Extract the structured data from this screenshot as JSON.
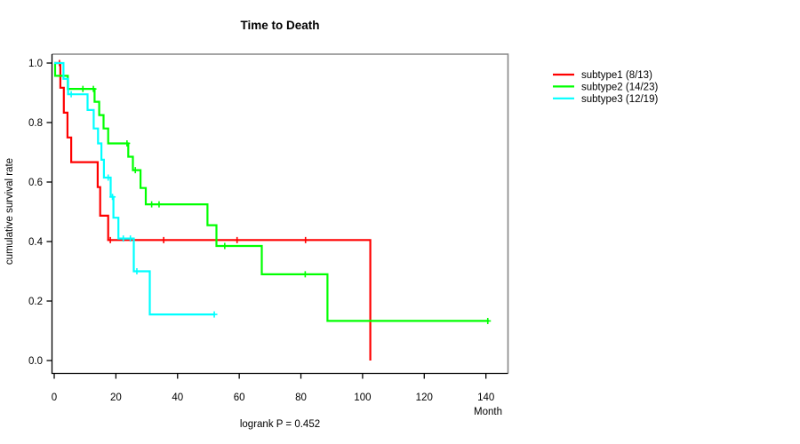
{
  "chart_data": {
    "type": "line",
    "variant": "kaplan-meier-step",
    "title": "Time to Death",
    "xlabel": "Month",
    "ylabel": "cumulative survival rate",
    "footnote": "logrank P = 0.452",
    "xticks": [
      0,
      20,
      40,
      60,
      80,
      100,
      120,
      140
    ],
    "ytick_labels": [
      "0.0",
      "0.2",
      "0.4",
      "0.6",
      "0.8",
      "1.0"
    ],
    "ytick_values": [
      0.0,
      0.2,
      0.4,
      0.6,
      0.8,
      1.0
    ],
    "xlim": [
      0,
      147
    ],
    "ylim": [
      0.0,
      1.0
    ],
    "grid": false,
    "legend_position": "right-outside",
    "axis_color": "#000000",
    "box_color": "#878787",
    "series": [
      {
        "name": "subtype1 (8/13)",
        "color": "#ff0000",
        "steps": [
          [
            0,
            1.0
          ],
          [
            2,
            0.917
          ],
          [
            3.1,
            0.833
          ],
          [
            4.3,
            0.75
          ],
          [
            5.5,
            0.667
          ],
          [
            14.1,
            0.583
          ],
          [
            14.9,
            0.487
          ],
          [
            17.5,
            0.405
          ],
          [
            102.5,
            0.0
          ]
        ],
        "end": 102.5,
        "censors": [
          [
            1.7,
            1.0
          ],
          [
            18.2,
            0.405
          ],
          [
            35.5,
            0.405
          ],
          [
            59.3,
            0.405
          ],
          [
            81.5,
            0.405
          ]
        ]
      },
      {
        "name": "subtype2 (14/23)",
        "color": "#00ff00",
        "steps": [
          [
            0,
            1.0
          ],
          [
            0.3,
            0.957
          ],
          [
            4.4,
            0.913
          ],
          [
            13.1,
            0.87
          ],
          [
            14.6,
            0.825
          ],
          [
            16,
            0.78
          ],
          [
            17.5,
            0.73
          ],
          [
            24,
            0.685
          ],
          [
            25.5,
            0.64
          ],
          [
            28,
            0.58
          ],
          [
            29.7,
            0.525
          ],
          [
            49.7,
            0.455
          ],
          [
            52.6,
            0.385
          ],
          [
            67.3,
            0.29
          ],
          [
            88.6,
            0.133
          ]
        ],
        "end": 141,
        "censors": [
          [
            9.3,
            0.913
          ],
          [
            12.7,
            0.913
          ],
          [
            23.6,
            0.73
          ],
          [
            26.3,
            0.64
          ],
          [
            31.6,
            0.525
          ],
          [
            34,
            0.525
          ],
          [
            55.3,
            0.385
          ],
          [
            81.4,
            0.29
          ],
          [
            140.6,
            0.133
          ]
        ]
      },
      {
        "name": "subtype3 (12/19)",
        "color": "#00ffff",
        "steps": [
          [
            0,
            1.0
          ],
          [
            3,
            0.947
          ],
          [
            4.5,
            0.895
          ],
          [
            10.8,
            0.842
          ],
          [
            12.8,
            0.78
          ],
          [
            14.2,
            0.73
          ],
          [
            15.3,
            0.675
          ],
          [
            16.1,
            0.615
          ],
          [
            18.3,
            0.55
          ],
          [
            19.2,
            0.48
          ],
          [
            20.8,
            0.41
          ],
          [
            25.8,
            0.3
          ],
          [
            31,
            0.155
          ]
        ],
        "end": 52.2,
        "censors": [
          [
            5.5,
            0.895
          ],
          [
            17.5,
            0.615
          ],
          [
            18.9,
            0.55
          ],
          [
            22.4,
            0.41
          ],
          [
            24.7,
            0.41
          ],
          [
            26.8,
            0.3
          ],
          [
            51.9,
            0.155
          ]
        ]
      }
    ]
  }
}
